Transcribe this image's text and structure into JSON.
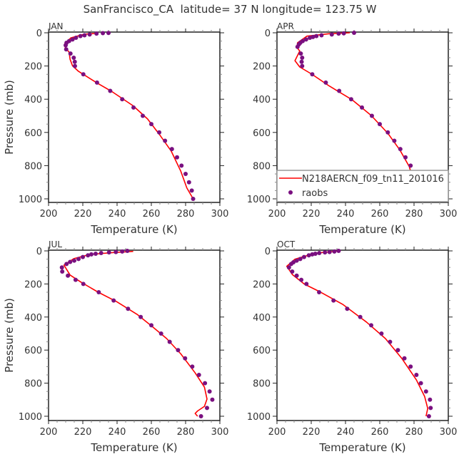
{
  "title": "SanFrancisco_CA  latitude= 37 N longitude= 123.75 W",
  "colors": {
    "model": "#ff0000",
    "obs": "#7a1080",
    "axis": "#222222"
  },
  "legend": {
    "model_label": "N218AERCN_f09_tn11_201016",
    "obs_label": "raobs",
    "placement": "bottom-right of APR panel"
  },
  "chart_data": [
    {
      "type": "line+scatter",
      "title": "JAN",
      "xlabel": "Temperature (K)",
      "ylabel": "Pressure (mb)",
      "xlim": [
        200,
        300
      ],
      "ylim": [
        1000,
        0
      ],
      "xticks": [
        "200",
        "220",
        "240",
        "260",
        "280",
        "300"
      ],
      "yticks": [
        "0",
        "200",
        "400",
        "600",
        "800",
        "1000"
      ],
      "model": {
        "T": [
          229,
          221,
          213,
          209.4,
          209.4,
          212,
          212.6,
          214,
          217.5,
          228.6,
          237,
          249.4,
          257.8,
          264.7,
          271.6,
          277.2,
          280.7,
          284.4
        ],
        "p": [
          3,
          8,
          31,
          67,
          82,
          117,
          160,
          199,
          232,
          304,
          354,
          440,
          519,
          612,
          712,
          834,
          934,
          1000
        ]
      },
      "raobs": {
        "T": [
          235,
          231.7,
          228,
          224,
          221,
          218.6,
          216,
          214,
          212,
          210.5,
          210,
          210.3,
          212.8,
          214.7,
          215.3,
          215.4,
          220.3,
          228.3,
          236,
          243,
          249.6,
          255,
          260,
          264.6,
          268,
          272,
          275,
          277.6,
          280,
          282,
          283.6,
          284.4
        ],
        "p": [
          1,
          2,
          5,
          10,
          15,
          20,
          30,
          40,
          50,
          60,
          75,
          100,
          125,
          150,
          175,
          200,
          250,
          300,
          350,
          400,
          450,
          500,
          550,
          600,
          650,
          700,
          750,
          800,
          850,
          900,
          950,
          1000
        ]
      }
    },
    {
      "type": "line+scatter",
      "title": "APR",
      "xlabel": "Temperature (K)",
      "ylabel": "",
      "xlim": [
        200,
        300
      ],
      "ylim": [
        1000,
        0
      ],
      "xticks": [
        "200",
        "220",
        "240",
        "260",
        "280",
        "300"
      ],
      "yticks": [
        "0",
        "200",
        "400",
        "600",
        "800",
        "1000"
      ],
      "model": {
        "T": [
          242.5,
          231,
          217.5,
          212,
          211.7,
          213.3,
          210.5,
          213.3,
          220.3,
          230.5,
          243.9,
          255,
          264.7,
          271.7,
          277.2,
          280,
          281.7,
          284.2
        ],
        "p": [
          0,
          5,
          20,
          60,
          89,
          110,
          168,
          206,
          249,
          320,
          404,
          498,
          605,
          705,
          805,
          905,
          963,
          1000
        ]
      },
      "raobs": {
        "T": [
          245,
          239,
          236,
          232,
          226,
          223,
          221,
          219.2,
          217,
          215,
          213.6,
          212.8,
          212,
          213.9,
          214.7,
          214.4,
          214.7,
          220.6,
          228.5,
          236.3,
          243.3,
          249.6,
          255.4,
          260,
          264.7,
          268.5,
          272,
          275,
          278,
          280.4,
          282.8,
          283.9,
          284.7
        ],
        "p": [
          0,
          3,
          5,
          10,
          15,
          20,
          25,
          30,
          40,
          50,
          60,
          70,
          85,
          125,
          150,
          175,
          200,
          250,
          300,
          350,
          400,
          450,
          500,
          550,
          600,
          650,
          700,
          750,
          800,
          850,
          900,
          950,
          1000
        ]
      }
    },
    {
      "type": "line+scatter",
      "title": "JUL",
      "xlabel": "Temperature (K)",
      "ylabel": "Pressure (mb)",
      "xlim": [
        200,
        300
      ],
      "ylim": [
        1000,
        0
      ],
      "xticks": [
        "200",
        "220",
        "240",
        "260",
        "280",
        "300"
      ],
      "yticks": [
        "0",
        "200",
        "400",
        "600",
        "800",
        "1000"
      ],
      "model": {
        "T": [
          249.4,
          238,
          224.4,
          214.7,
          209,
          212.6,
          218.9,
          229,
          239.7,
          252,
          260.6,
          268.9,
          277.2,
          285.6,
          291,
          292.5,
          291,
          287,
          285.6,
          287
        ],
        "p": [
          3,
          10,
          21,
          47,
          86,
          146,
          189,
          250,
          307,
          386,
          458,
          530,
          623,
          738,
          824,
          896,
          940,
          968,
          983,
          1000
        ]
      },
      "raobs": {
        "T": [
          246,
          243,
          239.3,
          235.3,
          230.7,
          227.5,
          225,
          223,
          220,
          217.5,
          215,
          212.6,
          210.5,
          207.8,
          208,
          211.3,
          215.8,
          220.3,
          229.3,
          238,
          246.4,
          253.8,
          260,
          265.7,
          270.7,
          275.6,
          279.7,
          283.9,
          287.8,
          291.3,
          294,
          295.6,
          292.5,
          289
        ],
        "p": [
          0,
          4,
          7,
          9,
          13,
          17,
          21,
          27,
          37,
          49,
          59,
          67,
          79,
          100,
          125,
          150,
          175,
          200,
          250,
          300,
          350,
          400,
          450,
          500,
          550,
          600,
          650,
          700,
          750,
          800,
          850,
          900,
          950,
          1000
        ]
      }
    },
    {
      "type": "line+scatter",
      "title": "OCT",
      "xlabel": "Temperature (K)",
      "ylabel": "",
      "xlim": [
        200,
        300
      ],
      "ylim": [
        1000,
        0
      ],
      "xticks": [
        "200",
        "220",
        "240",
        "260",
        "280",
        "300"
      ],
      "yticks": [
        "0",
        "200",
        "400",
        "600",
        "800",
        "1000"
      ],
      "model": {
        "T": [
          236.8,
          222.5,
          210.5,
          205.7,
          209,
          216,
          224.4,
          238.3,
          252.2,
          263.3,
          273,
          281.4,
          286.2,
          288,
          287
        ],
        "p": [
          0,
          14,
          50,
          93,
          143,
          201,
          244,
          323,
          430,
          530,
          652,
          781,
          881,
          953,
          1000
        ]
      },
      "raobs": {
        "T": [
          236,
          233.5,
          230.7,
          228,
          224.7,
          222.4,
          220.6,
          218.6,
          215.8,
          213.6,
          211.5,
          209.6,
          208.3,
          207,
          208.9,
          211.5,
          214.2,
          217.2,
          224.6,
          233,
          241,
          248.6,
          255,
          261,
          266,
          270.6,
          274.4,
          278,
          281.4,
          284,
          287,
          289.3,
          289.7,
          288.7
        ],
        "p": [
          0,
          4,
          7,
          9,
          13,
          17,
          21,
          27,
          37,
          49,
          59,
          69,
          79,
          100,
          125,
          150,
          175,
          200,
          250,
          300,
          350,
          400,
          450,
          500,
          550,
          600,
          650,
          700,
          750,
          800,
          850,
          900,
          950,
          1000
        ]
      }
    }
  ]
}
